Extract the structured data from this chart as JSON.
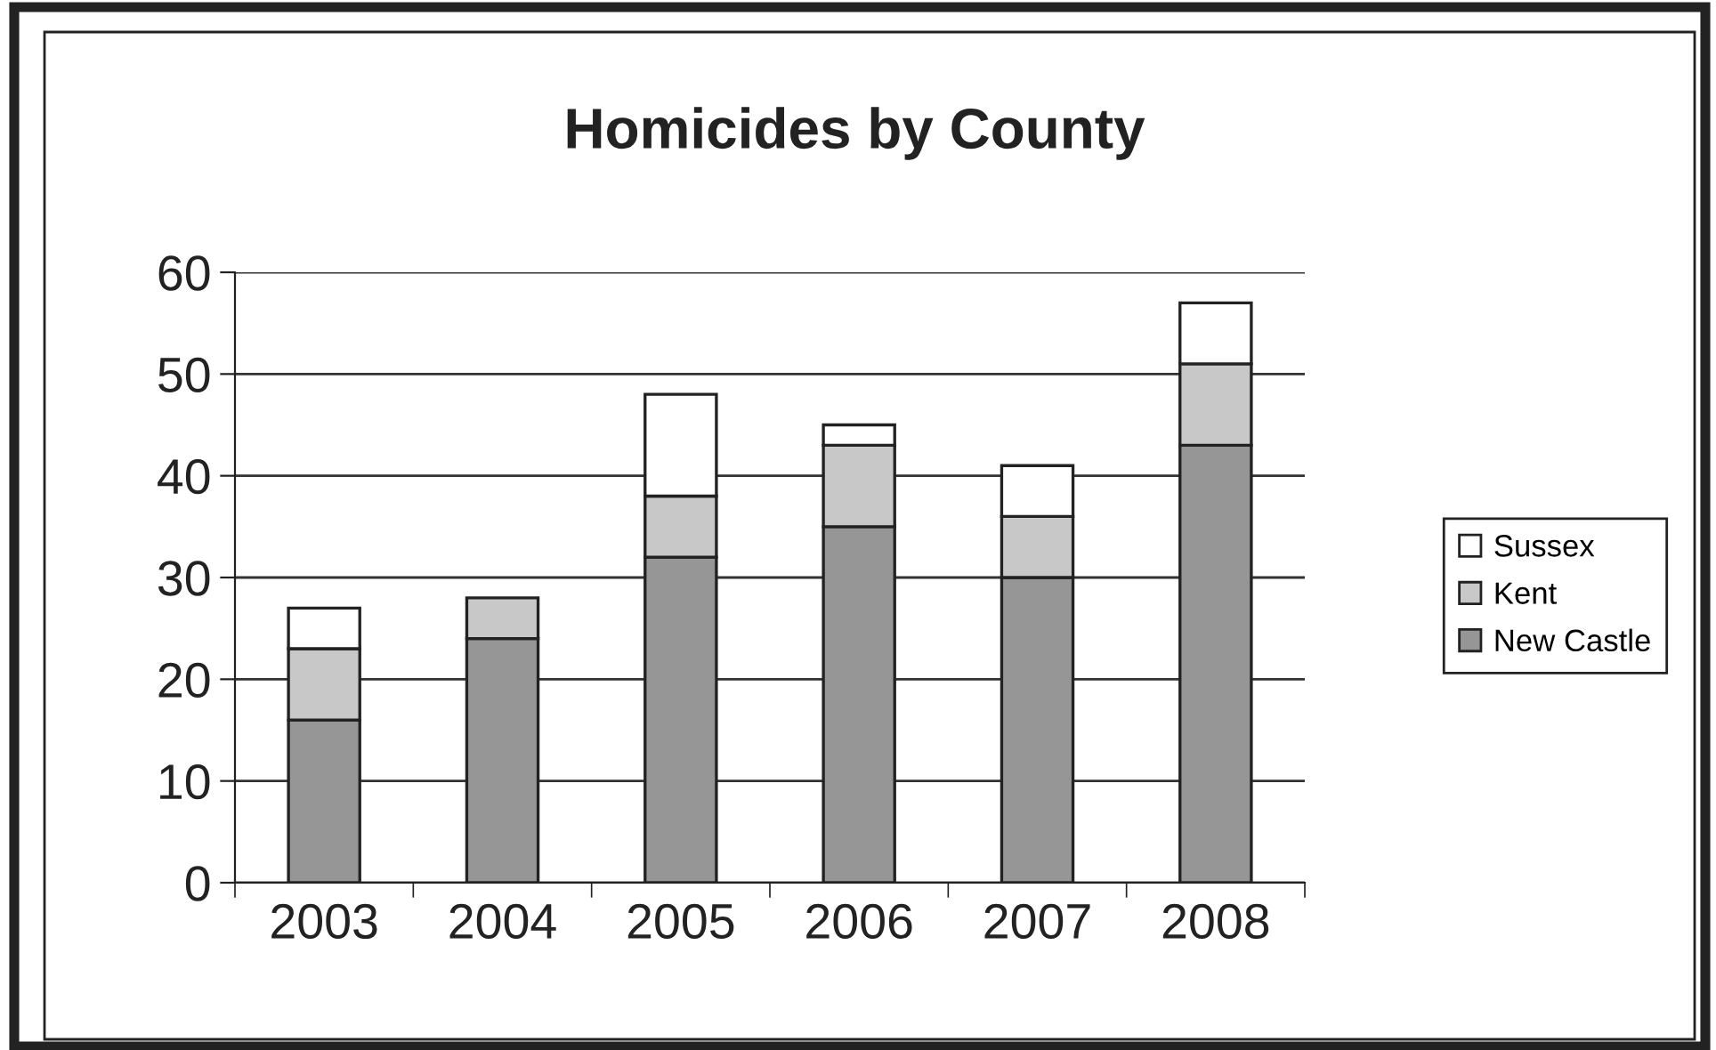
{
  "chart_data": {
    "type": "bar",
    "title": "Homicides by County",
    "categories": [
      "2003",
      "2004",
      "2005",
      "2006",
      "2007",
      "2008"
    ],
    "series": [
      {
        "name": "New Castle",
        "color": "#969696",
        "values": [
          16,
          24,
          32,
          35,
          30,
          43
        ]
      },
      {
        "name": "Kent",
        "color": "#c8c8c8",
        "values": [
          7,
          4,
          6,
          8,
          6,
          8
        ]
      },
      {
        "name": "Sussex",
        "color": "#ffffff",
        "values": [
          4,
          null,
          10,
          2,
          5,
          6
        ]
      }
    ],
    "stacked": true,
    "ylim": [
      0,
      60
    ],
    "yticks": [
      0,
      10,
      20,
      30,
      40,
      50,
      60
    ],
    "grid": "y",
    "legend": "right"
  }
}
